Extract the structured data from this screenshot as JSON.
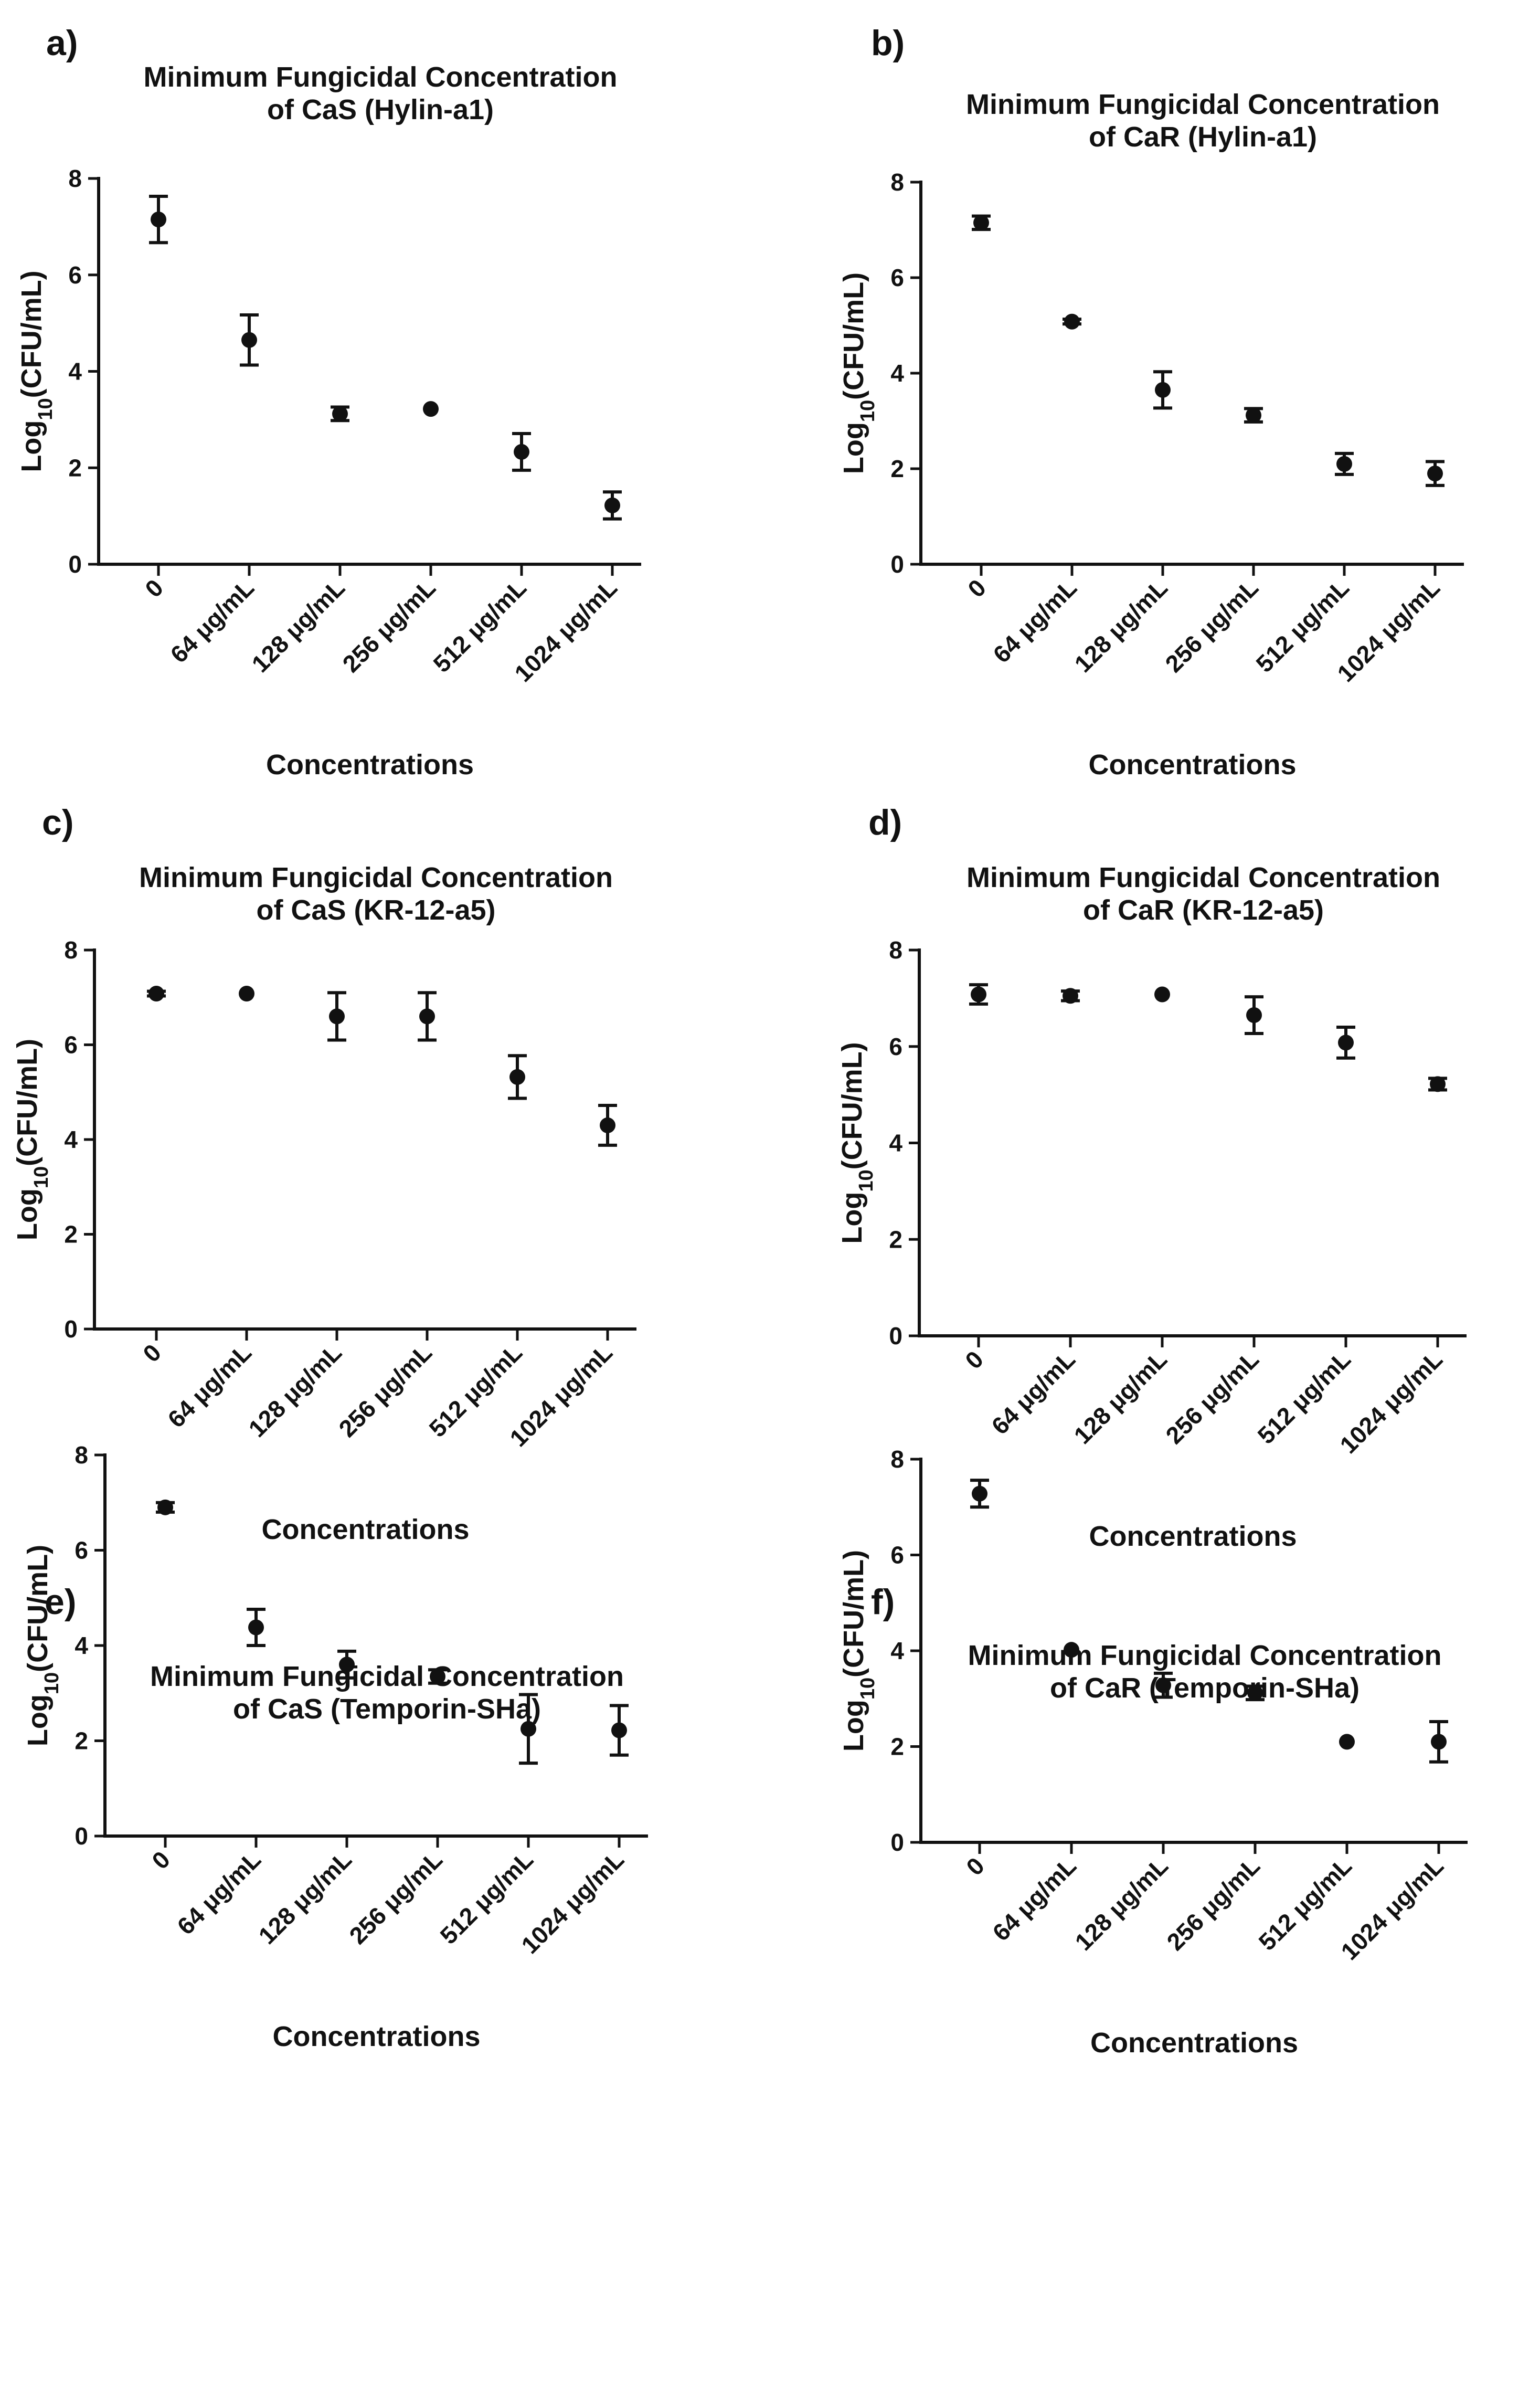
{
  "figure": {
    "xlabel": "Concentrations",
    "ylabel_prefix": "Log",
    "ylabel_sub": "10",
    "ylabel_suffix": "(CFU/mL)",
    "categories": [
      "0",
      "64 μg/mL",
      "128 μg/mL",
      "256 μg/mL",
      "512 μg/mL",
      "1024 μg/mL"
    ],
    "yticks": [
      0,
      2,
      4,
      6,
      8
    ],
    "color": "#111111"
  },
  "chart_data": [
    {
      "panel": "a)",
      "type": "scatter",
      "title": [
        "Minimum Fungicidal Concentration",
        "of CaS (Hylin-a1)"
      ],
      "xlabel": "Concentrations",
      "ylabel": "Log10(CFU/mL)",
      "ylim": [
        0,
        8
      ],
      "categories": [
        "0",
        "64 μg/mL",
        "128 μg/mL",
        "256 μg/mL",
        "512 μg/mL",
        "1024 μg/mL"
      ],
      "values": [
        7.15,
        4.65,
        3.12,
        3.22,
        2.33,
        1.22
      ],
      "errors": [
        0.48,
        0.52,
        0.14,
        0.0,
        0.38,
        0.28
      ]
    },
    {
      "panel": "b)",
      "type": "scatter",
      "title": [
        "Minimum Fungicidal Concentration",
        "of CaR (Hylin-a1)"
      ],
      "xlabel": "Concentrations",
      "ylabel": "Log10(CFU/mL)",
      "ylim": [
        0,
        8
      ],
      "categories": [
        "0",
        "64 μg/mL",
        "128 μg/mL",
        "256 μg/mL",
        "512 μg/mL",
        "1024 μg/mL"
      ],
      "values": [
        7.15,
        5.08,
        3.65,
        3.12,
        2.1,
        1.9
      ],
      "errors": [
        0.14,
        0.05,
        0.38,
        0.14,
        0.22,
        0.25
      ]
    },
    {
      "panel": "c)",
      "type": "scatter",
      "title": [
        "Minimum Fungicidal Concentration",
        "of CaS (KR-12-a5)"
      ],
      "xlabel": "Concentrations",
      "ylabel": "Log10(CFU/mL)",
      "ylim": [
        0,
        8
      ],
      "categories": [
        "0",
        "64 μg/mL",
        "128 μg/mL",
        "256 μg/mL",
        "512 μg/mL",
        "1024 μg/mL"
      ],
      "values": [
        7.08,
        7.08,
        6.6,
        6.6,
        5.32,
        4.3
      ],
      "errors": [
        0.05,
        0.0,
        0.5,
        0.5,
        0.45,
        0.42
      ]
    },
    {
      "panel": "d)",
      "type": "scatter",
      "title": [
        "Minimum Fungicidal Concentration",
        "of CaR (KR-12-a5)"
      ],
      "xlabel": "Concentrations",
      "ylabel": "Log10(CFU/mL)",
      "ylim": [
        0,
        8
      ],
      "categories": [
        "0",
        "64 μg/mL",
        "128 μg/mL",
        "256 μg/mL",
        "512 μg/mL",
        "1024 μg/mL"
      ],
      "values": [
        7.08,
        7.05,
        7.08,
        6.65,
        6.08,
        5.22
      ],
      "errors": [
        0.2,
        0.1,
        0.0,
        0.38,
        0.32,
        0.12
      ]
    },
    {
      "panel": "e)",
      "type": "scatter",
      "title": [
        "Minimum Fungicidal Concentration",
        "of CaS (Temporin-SHa)"
      ],
      "xlabel": "Concentrations",
      "ylabel": "Log10(CFU/mL)",
      "ylim": [
        0,
        8
      ],
      "categories": [
        "0",
        "64 μg/mL",
        "128 μg/mL",
        "256 μg/mL",
        "512 μg/mL",
        "1024 μg/mL"
      ],
      "values": [
        6.9,
        4.38,
        3.6,
        3.35,
        2.25,
        2.22
      ],
      "errors": [
        0.1,
        0.38,
        0.28,
        0.14,
        0.72,
        0.52
      ]
    },
    {
      "panel": "f)",
      "type": "scatter",
      "title": [
        "Minimum Fungicidal Concentration",
        "of CaR (Temporin-SHa)"
      ],
      "xlabel": "Concentrations",
      "ylabel": "Log10(CFU/mL)",
      "ylim": [
        0,
        8
      ],
      "categories": [
        "0",
        "64 μg/mL",
        "128 μg/mL",
        "256 μg/mL",
        "512 μg/mL",
        "1024 μg/mL"
      ],
      "values": [
        7.28,
        4.02,
        3.28,
        3.12,
        2.1,
        2.1
      ],
      "errors": [
        0.28,
        0.0,
        0.25,
        0.14,
        0.0,
        0.42
      ]
    }
  ]
}
